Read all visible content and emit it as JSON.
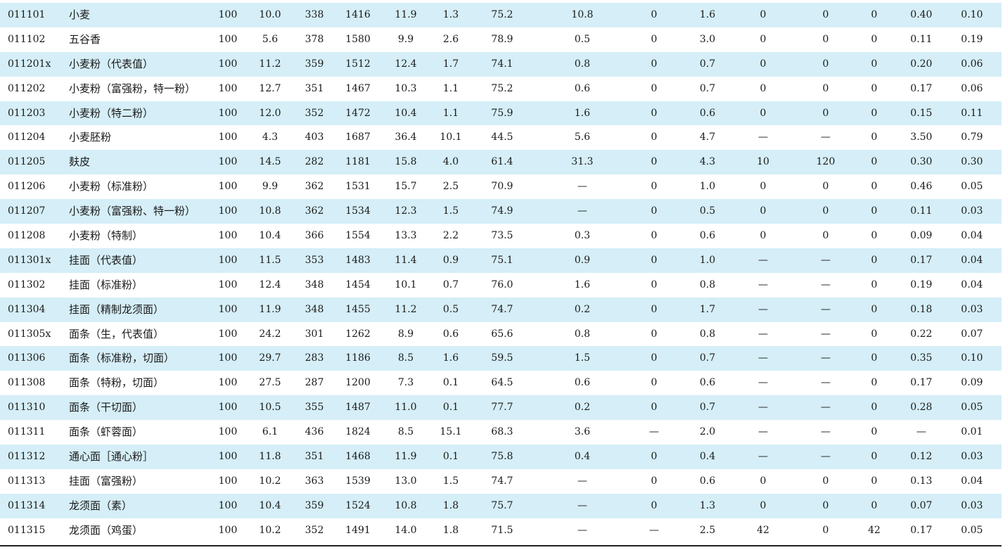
{
  "rows": [
    {
      "code": "011101",
      "name": "小麦",
      "values": [
        "100",
        "10.0",
        "338",
        "1416",
        "11.9",
        "1.3",
        "75.2",
        "10.8",
        "0",
        "1.6",
        "0",
        "0",
        "0",
        "0.40",
        "0.10"
      ]
    },
    {
      "code": "011102",
      "name": "五谷香",
      "values": [
        "100",
        "5.6",
        "378",
        "1580",
        "9.9",
        "2.6",
        "78.9",
        "0.5",
        "0",
        "3.0",
        "0",
        "0",
        "0",
        "0.11",
        "0.19"
      ]
    },
    {
      "code": "011201x",
      "name": "小麦粉（代表值）",
      "values": [
        "100",
        "11.2",
        "359",
        "1512",
        "12.4",
        "1.7",
        "74.1",
        "0.8",
        "0",
        "0.7",
        "0",
        "0",
        "0",
        "0.20",
        "0.06"
      ]
    },
    {
      "code": "011202",
      "name": "小麦粉（富强粉，特一粉）",
      "values": [
        "100",
        "12.7",
        "351",
        "1467",
        "10.3",
        "1.1",
        "75.2",
        "0.6",
        "0",
        "0.7",
        "0",
        "0",
        "0",
        "0.17",
        "0.06"
      ]
    },
    {
      "code": "011203",
      "name": "小麦粉（特二粉）",
      "values": [
        "100",
        "12.0",
        "352",
        "1472",
        "10.4",
        "1.1",
        "75.9",
        "1.6",
        "0",
        "0.6",
        "0",
        "0",
        "0",
        "0.15",
        "0.11"
      ]
    },
    {
      "code": "011204",
      "name": "小麦胚粉",
      "values": [
        "100",
        "4.3",
        "403",
        "1687",
        "36.4",
        "10.1",
        "44.5",
        "5.6",
        "0",
        "4.7",
        "—",
        "—",
        "0",
        "3.50",
        "0.79"
      ]
    },
    {
      "code": "011205",
      "name": "麸皮",
      "values": [
        "100",
        "14.5",
        "282",
        "1181",
        "15.8",
        "4.0",
        "61.4",
        "31.3",
        "0",
        "4.3",
        "10",
        "120",
        "0",
        "0.30",
        "0.30"
      ]
    },
    {
      "code": "011206",
      "name": "小麦粉（标准粉）",
      "values": [
        "100",
        "9.9",
        "362",
        "1531",
        "15.7",
        "2.5",
        "70.9",
        "—",
        "0",
        "1.0",
        "0",
        "0",
        "0",
        "0.46",
        "0.05"
      ]
    },
    {
      "code": "011207",
      "name": "小麦粉（富强粉、特一粉）",
      "values": [
        "100",
        "10.8",
        "362",
        "1534",
        "12.3",
        "1.5",
        "74.9",
        "—",
        "0",
        "0.5",
        "0",
        "0",
        "0",
        "0.11",
        "0.03"
      ]
    },
    {
      "code": "011208",
      "name": "小麦粉（特制）",
      "values": [
        "100",
        "10.4",
        "366",
        "1554",
        "13.3",
        "2.2",
        "73.5",
        "0.3",
        "0",
        "0.6",
        "0",
        "0",
        "0",
        "0.09",
        "0.04"
      ]
    },
    {
      "code": "011301x",
      "name": "挂面（代表值）",
      "values": [
        "100",
        "11.5",
        "353",
        "1483",
        "11.4",
        "0.9",
        "75.1",
        "0.9",
        "0",
        "1.0",
        "—",
        "—",
        "0",
        "0.17",
        "0.04"
      ]
    },
    {
      "code": "011302",
      "name": "挂面（标准粉）",
      "values": [
        "100",
        "12.4",
        "348",
        "1454",
        "10.1",
        "0.7",
        "76.0",
        "1.6",
        "0",
        "0.8",
        "—",
        "—",
        "0",
        "0.19",
        "0.04"
      ]
    },
    {
      "code": "011304",
      "name": "挂面（精制龙须面）",
      "values": [
        "100",
        "11.9",
        "348",
        "1455",
        "11.2",
        "0.5",
        "74.7",
        "0.2",
        "0",
        "1.7",
        "—",
        "—",
        "0",
        "0.18",
        "0.03"
      ]
    },
    {
      "code": "011305x",
      "name": "面条（生，代表值）",
      "values": [
        "100",
        "24.2",
        "301",
        "1262",
        "8.9",
        "0.6",
        "65.6",
        "0.8",
        "0",
        "0.8",
        "—",
        "—",
        "0",
        "0.22",
        "0.07"
      ]
    },
    {
      "code": "011306",
      "name": "面条（标准粉，切面）",
      "values": [
        "100",
        "29.7",
        "283",
        "1186",
        "8.5",
        "1.6",
        "59.5",
        "1.5",
        "0",
        "0.7",
        "—",
        "—",
        "0",
        "0.35",
        "0.10"
      ]
    },
    {
      "code": "011308",
      "name": "面条（特粉，切面）",
      "values": [
        "100",
        "27.5",
        "287",
        "1200",
        "7.3",
        "0.1",
        "64.5",
        "0.6",
        "0",
        "0.6",
        "—",
        "—",
        "0",
        "0.17",
        "0.09"
      ]
    },
    {
      "code": "011310",
      "name": "面条（干切面）",
      "values": [
        "100",
        "10.5",
        "355",
        "1487",
        "11.0",
        "0.1",
        "77.7",
        "0.2",
        "0",
        "0.7",
        "—",
        "—",
        "0",
        "0.28",
        "0.05"
      ]
    },
    {
      "code": "011311",
      "name": "面条（虾蓉面）",
      "values": [
        "100",
        "6.1",
        "436",
        "1824",
        "8.5",
        "15.1",
        "68.3",
        "3.6",
        "—",
        "2.0",
        "—",
        "—",
        "0",
        "—",
        "0.01"
      ]
    },
    {
      "code": "011312",
      "name": "通心面［通心粉］",
      "values": [
        "100",
        "11.8",
        "351",
        "1468",
        "11.9",
        "0.1",
        "75.8",
        "0.4",
        "0",
        "0.4",
        "—",
        "—",
        "0",
        "0.12",
        "0.03"
      ]
    },
    {
      "code": "011313",
      "name": "挂面（富强粉）",
      "values": [
        "100",
        "10.2",
        "363",
        "1539",
        "13.0",
        "1.5",
        "74.7",
        "—",
        "0",
        "0.6",
        "0",
        "0",
        "0",
        "0.13",
        "0.04"
      ]
    },
    {
      "code": "011314",
      "name": "龙须面（素）",
      "values": [
        "100",
        "10.4",
        "359",
        "1524",
        "10.8",
        "1.8",
        "75.7",
        "—",
        "0",
        "1.3",
        "0",
        "0",
        "0",
        "0.07",
        "0.03"
      ]
    },
    {
      "code": "011315",
      "name": "龙须面（鸡蛋）",
      "values": [
        "100",
        "10.2",
        "352",
        "1491",
        "14.0",
        "1.8",
        "71.5",
        "—",
        "—",
        "2.5",
        "42",
        "0",
        "42",
        "0.17",
        "0.05"
      ]
    }
  ],
  "colors": {
    "shaded_row": "#d5eef7",
    "text": "#1a1a1a",
    "rule": "#222222"
  }
}
